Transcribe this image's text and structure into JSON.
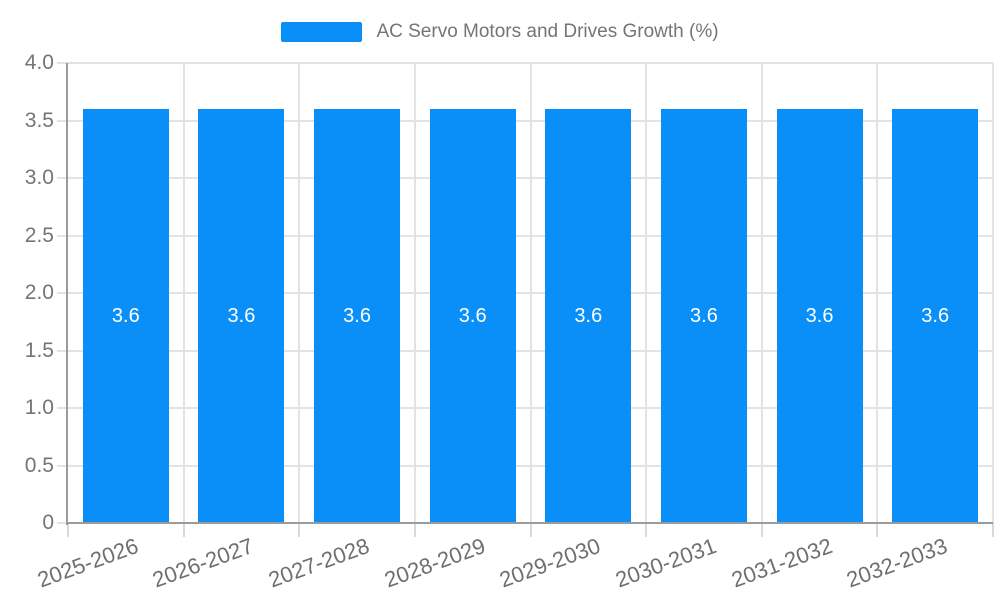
{
  "chart_data": {
    "type": "bar",
    "title": "AC Servo Motors and Drives Growth (%)",
    "categories": [
      "2025-2026",
      "2026-2027",
      "2027-2028",
      "2028-2029",
      "2029-2030",
      "2030-2031",
      "2031-2032",
      "2032-2033"
    ],
    "values": [
      3.6,
      3.6,
      3.6,
      3.6,
      3.6,
      3.6,
      3.6,
      3.6
    ],
    "bar_value_labels": [
      "3.6",
      "3.6",
      "3.6",
      "3.6",
      "3.6",
      "3.6",
      "3.6",
      "3.6"
    ],
    "xlabel": "",
    "ylabel": "",
    "ylim": [
      0,
      4
    ],
    "ytick_labels": [
      "0",
      "0.5",
      "1.0",
      "1.5",
      "2.0",
      "2.5",
      "3.0",
      "3.5",
      "4.0"
    ],
    "ytick_values": [
      0,
      0.5,
      1.0,
      1.5,
      2.0,
      2.5,
      3.0,
      3.5,
      4.0
    ],
    "grid": true,
    "legend_position": "top-center",
    "colors": {
      "bar": "#0A8FF8",
      "grid": "#e3e3e3",
      "axis": "#9b9b9b",
      "tick_text": "#757575",
      "value_label": "#ffffff",
      "background": "#ffffff"
    }
  }
}
